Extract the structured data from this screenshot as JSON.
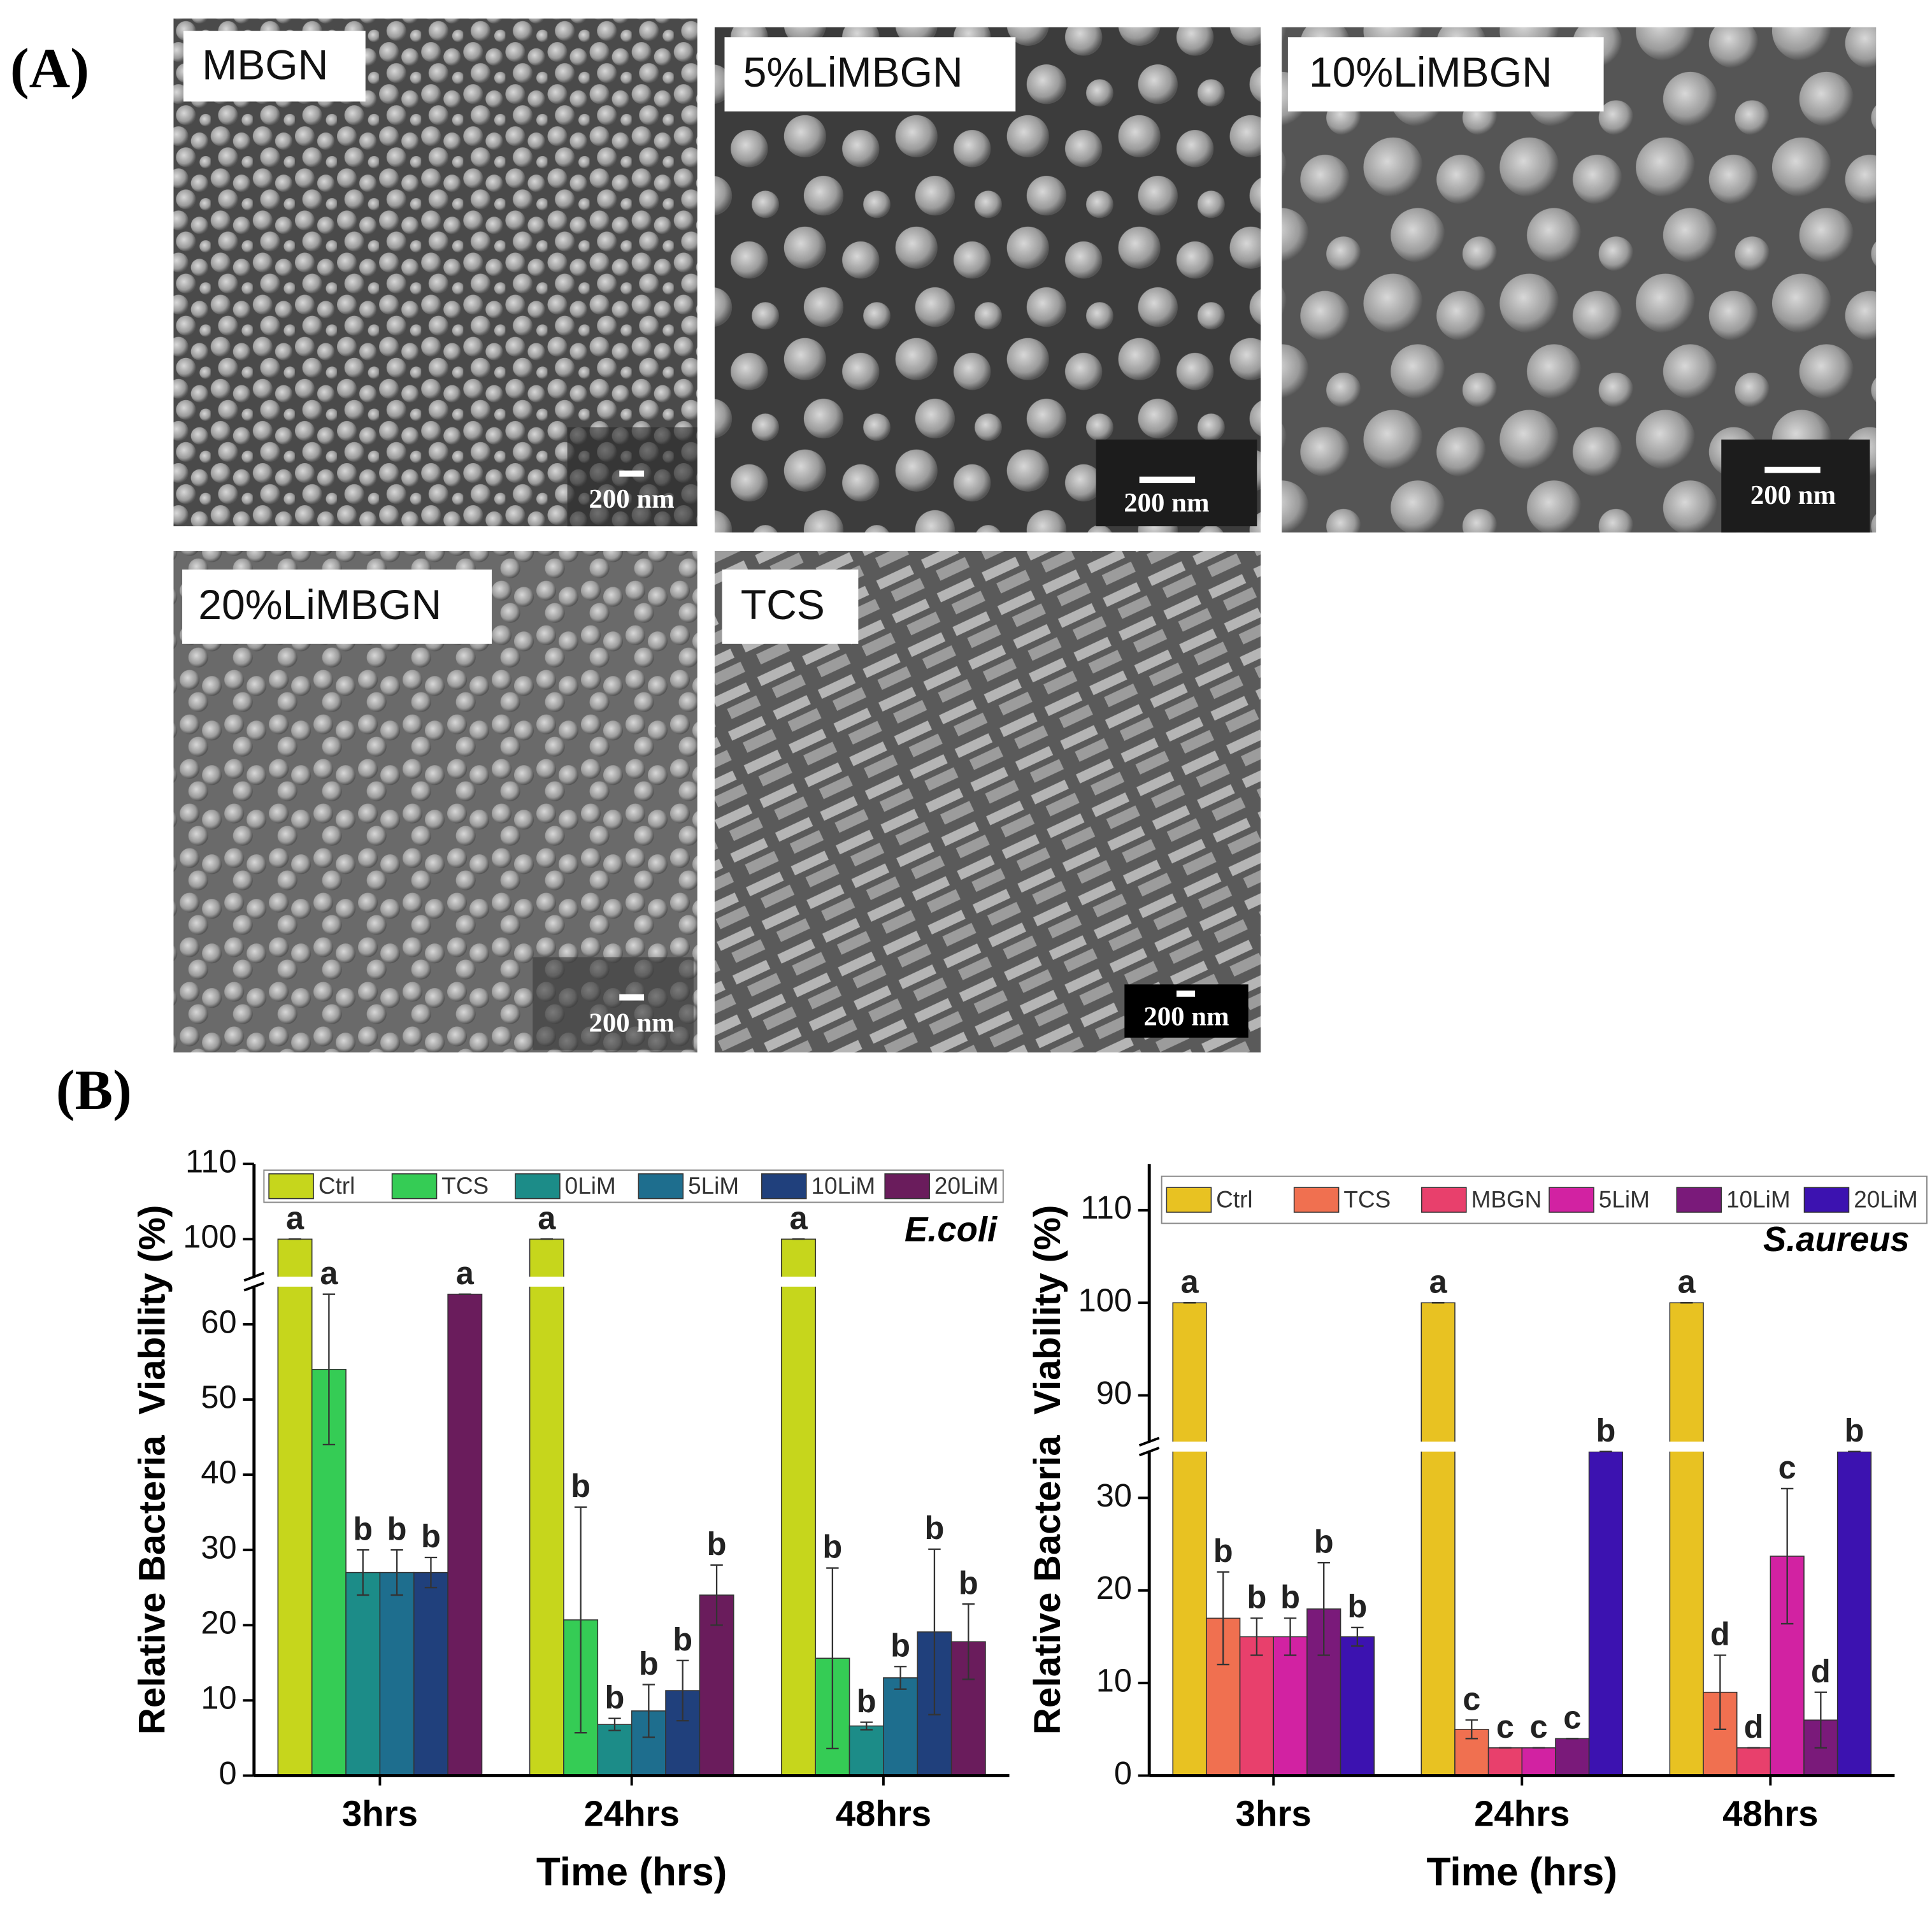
{
  "panel_a": {
    "label": "(A)",
    "images": [
      {
        "label": "MBGN",
        "scale_bar": "200 nm"
      },
      {
        "label": "5%LiMBGN",
        "scale_bar": "200 nm"
      },
      {
        "label": "10%LiMBGN",
        "scale_bar": "200 nm"
      },
      {
        "label": "20%LiMBGN",
        "scale_bar": "200 nm"
      },
      {
        "label": "TCS",
        "scale_bar": "200 nm"
      }
    ]
  },
  "panel_b": {
    "label": "(B)"
  },
  "chart_data": [
    {
      "type": "bar",
      "annotation": "E.coli",
      "x_label": "Time (hrs)",
      "y_label": "Relative Bacteria  Viability (%)",
      "categories": [
        "3hrs",
        "24hrs",
        "48hrs"
      ],
      "ylim": [
        0,
        110
      ],
      "ybreak": [
        65,
        95
      ],
      "yticks": [
        0,
        10,
        20,
        30,
        40,
        50,
        60,
        100,
        110
      ],
      "series": [
        {
          "name": "Ctrl",
          "color": "#c6d61c",
          "values": [
            100,
            100,
            100
          ],
          "errors": [
            0,
            0,
            0
          ],
          "letters": [
            "a",
            "a",
            "a"
          ]
        },
        {
          "name": "TCS",
          "color": "#35cc55",
          "values": [
            54,
            20.7,
            15.6
          ],
          "errors": [
            10,
            15,
            12
          ],
          "letters": [
            "a",
            "b",
            "b"
          ]
        },
        {
          "name": "0LiM",
          "color": "#1c8c88",
          "values": [
            27,
            6.8,
            6.6
          ],
          "errors": [
            3,
            0.8,
            0.5
          ],
          "letters": [
            "b",
            "b",
            "b"
          ]
        },
        {
          "name": "5LiM",
          "color": "#1e6e8e",
          "values": [
            27,
            8.6,
            13
          ],
          "errors": [
            3,
            3.5,
            1.5
          ],
          "letters": [
            "b",
            "b",
            "b"
          ]
        },
        {
          "name": "10LiM",
          "color": "#20407c",
          "values": [
            27,
            11.3,
            19.1
          ],
          "errors": [
            2,
            4,
            11
          ],
          "letters": [
            "b",
            "b",
            "b"
          ]
        },
        {
          "name": "20LiM",
          "color": "#6a1c5c",
          "values": [
            64,
            24,
            17.8
          ],
          "errors": [
            0,
            4,
            5
          ],
          "letters": [
            "a",
            "b",
            "b"
          ]
        }
      ]
    },
    {
      "type": "bar",
      "annotation": "S.aureus",
      "x_label": "Time (hrs)",
      "y_label": "Relative Bacteria  Viability (%)",
      "categories": [
        "3hrs",
        "24hrs",
        "48hrs"
      ],
      "ylim": [
        0,
        115
      ],
      "ybreak": [
        35,
        85
      ],
      "yticks": [
        0,
        10,
        20,
        30,
        90,
        100,
        110
      ],
      "series": [
        {
          "name": "Ctrl",
          "color": "#e8c222",
          "values": [
            100,
            100,
            100
          ],
          "errors": [
            0,
            0,
            0
          ],
          "letters": [
            "a",
            "a",
            "a"
          ]
        },
        {
          "name": "TCS",
          "color": "#f07050",
          "values": [
            17,
            5,
            9
          ],
          "errors": [
            5,
            1,
            4
          ],
          "letters": [
            "b",
            "c",
            "d"
          ]
        },
        {
          "name": "MBGN",
          "color": "#e8406c",
          "values": [
            15,
            3,
            3
          ],
          "errors": [
            2,
            0,
            0
          ],
          "letters": [
            "b",
            "c",
            "d"
          ]
        },
        {
          "name": "5LiM",
          "color": "#d222a2",
          "values": [
            15,
            3,
            23.7
          ],
          "errors": [
            2,
            0,
            7.3
          ],
          "letters": [
            "b",
            "c",
            "c"
          ]
        },
        {
          "name": "10LiM",
          "color": "#7a1a7a",
          "values": [
            18,
            4,
            6
          ],
          "errors": [
            5,
            0,
            3
          ],
          "letters": [
            "b",
            "c",
            "d"
          ]
        },
        {
          "name": "20LiM",
          "color": "#3c12b0",
          "values": [
            15,
            35,
            35
          ],
          "errors": [
            1,
            0,
            0
          ],
          "letters": [
            "b",
            "b",
            "b"
          ]
        }
      ]
    }
  ]
}
